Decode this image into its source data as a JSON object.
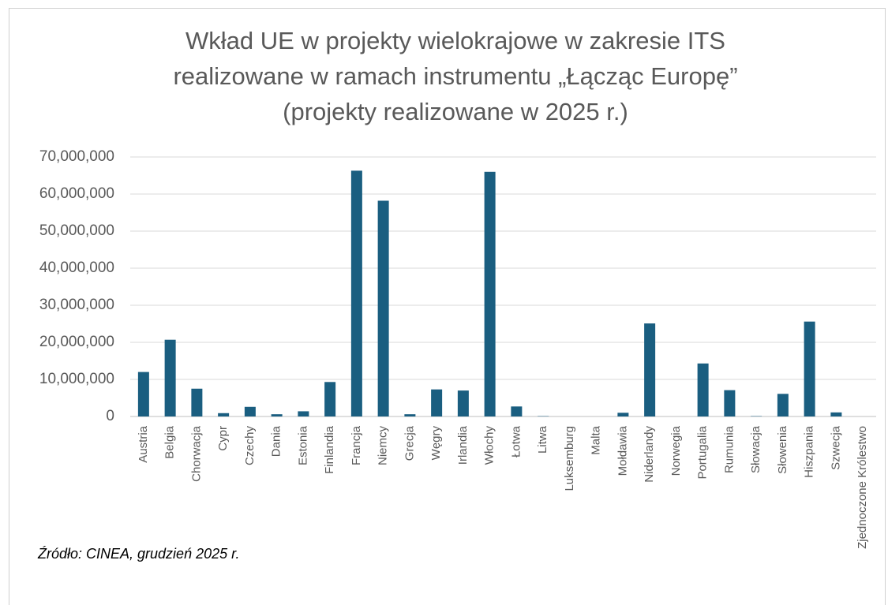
{
  "chart_data": {
    "type": "bar",
    "title_lines": [
      "Wkład UE w projekty wielokrajowe w zakresie ITS",
      "realizowane w ramach instrumentu „Łącząc Europę”",
      "(projekty realizowane w 2025 r.)"
    ],
    "source": "Źródło: CINEA, grudzień 2025 r.",
    "categories": [
      "Austria",
      "Belgia",
      "Chorwacja",
      "Cypr",
      "Czechy",
      "Dania",
      "Estonia",
      "Finlandia",
      "Francja",
      "Niemcy",
      "Grecja",
      "Węgry",
      "Irlandia",
      "Włochy",
      "Łotwa",
      "Litwa",
      "Luksemburg",
      "Malta",
      "Mołdawia",
      "Niderlandy",
      "Norwegia",
      "Portugalia",
      "Rumunia",
      "Słowacja",
      "Słowenia",
      "Hiszpania",
      "Szwecja",
      "Zjednoczone Królestwo"
    ],
    "values": [
      12000000,
      20700000,
      7500000,
      900000,
      2600000,
      600000,
      1400000,
      9300000,
      66300000,
      58200000,
      600000,
      7300000,
      7000000,
      66000000,
      2700000,
      100000,
      0,
      0,
      1000000,
      25100000,
      0,
      14300000,
      7100000,
      100000,
      6100000,
      25600000,
      1100000,
      0
    ],
    "color": "#1a5e80",
    "ylim": [
      0,
      70000000
    ],
    "yticks": [
      0,
      {
        "value": 10000000,
        "label": "10,000,000"
      },
      {
        "value": 20000000,
        "label": "20,000,000"
      },
      {
        "value": 30000000,
        "label": "30,000,000"
      },
      {
        "value": 40000000,
        "label": "40,000,000"
      },
      {
        "value": 50000000,
        "label": "50,000,000"
      },
      {
        "value": 60000000,
        "label": "60,000,000"
      },
      {
        "value": 70000000,
        "label": "70,000,000"
      }
    ],
    "grid": true
  }
}
